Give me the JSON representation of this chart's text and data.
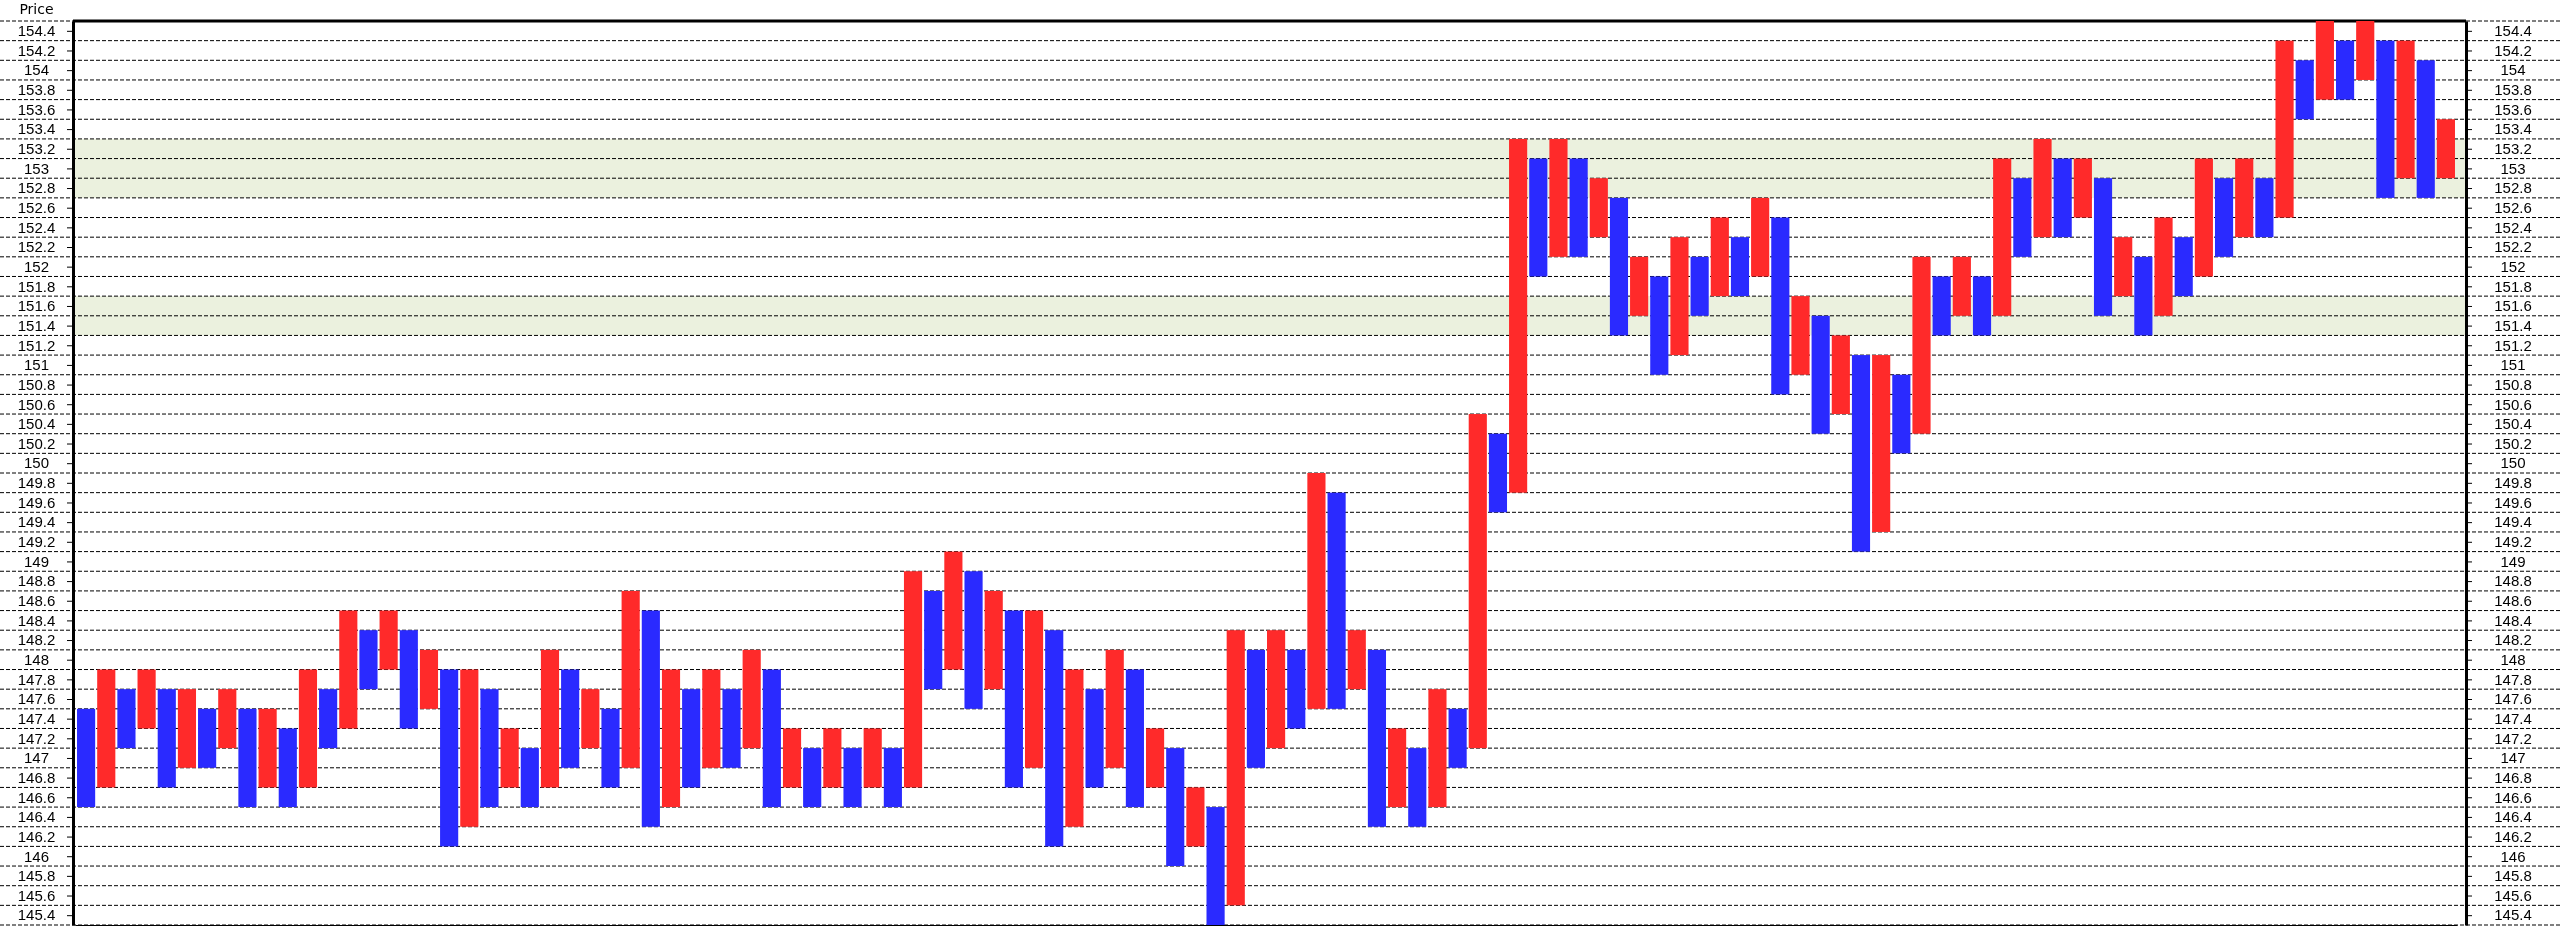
{
  "chart_data": {
    "type": "bar",
    "ylabel": "Price",
    "grid": "y",
    "categories": [
      null,
      null,
      null,
      null,
      null,
      null,
      null,
      null,
      null,
      null,
      null,
      null,
      null,
      null,
      null,
      null,
      null,
      null,
      null,
      null,
      null,
      null,
      null,
      null,
      null,
      null,
      null,
      null,
      null,
      null,
      null,
      null,
      null,
      null,
      null,
      null,
      null,
      null,
      null,
      null,
      null,
      null,
      null,
      null,
      null,
      null,
      null,
      null,
      null,
      null,
      null,
      null,
      null,
      null,
      null,
      null,
      null,
      null,
      null,
      null,
      null,
      null,
      null,
      null,
      null,
      null,
      null,
      null,
      null,
      null,
      null,
      null,
      null,
      null,
      null,
      null,
      null,
      null,
      null,
      null,
      null,
      null,
      null,
      null,
      null,
      null,
      null,
      null,
      null,
      null,
      null,
      null,
      null,
      null,
      null,
      null,
      null,
      null,
      null,
      null,
      null,
      null,
      null,
      null,
      null,
      null,
      null,
      null,
      null,
      null,
      null,
      null,
      null,
      null,
      null,
      null,
      null,
      null
    ],
    "base": [
      146.5,
      146.7,
      147.1,
      147.3,
      146.7,
      146.9,
      146.9,
      147.1,
      146.5,
      146.7,
      146.5,
      146.7,
      147.1,
      147.3,
      147.7,
      147.9,
      147.3,
      147.5,
      146.1,
      146.3,
      146.5,
      146.7,
      146.5,
      146.7,
      146.9,
      147.1,
      146.7,
      146.9,
      146.3,
      146.5,
      146.7,
      146.9,
      146.9,
      147.1,
      146.5,
      146.7,
      146.5,
      146.7,
      146.5,
      146.7,
      146.5,
      146.7,
      147.7,
      147.9,
      147.5,
      147.7,
      146.7,
      146.9,
      146.1,
      146.3,
      146.7,
      146.9,
      146.5,
      146.7,
      145.9,
      146.1,
      145.3,
      145.5,
      146.9,
      147.1,
      147.3,
      147.5,
      147.5,
      147.7,
      146.3,
      146.5,
      146.3,
      146.5,
      146.9,
      147.1,
      149.5,
      149.7,
      151.9,
      152.1,
      152.1,
      152.3,
      151.3,
      151.5,
      150.9,
      151.1,
      151.5,
      151.7,
      151.7,
      151.9,
      150.7,
      150.9,
      150.3,
      150.5,
      149.1,
      149.3,
      150.1,
      150.3,
      151.3,
      151.5,
      151.3,
      151.5,
      152.1,
      152.3,
      152.3,
      152.5,
      151.5,
      151.7,
      151.3,
      151.5,
      151.7,
      151.9,
      152.1,
      152.3,
      152.3,
      152.5,
      153.5,
      153.7,
      153.7,
      153.9,
      152.7,
      152.9,
      152.7,
      152.9
    ],
    "values": [
      1.0,
      1.2,
      0.6,
      0.6,
      1.0,
      0.8,
      0.6,
      0.6,
      1.0,
      0.8,
      0.8,
      1.2,
      0.6,
      1.2,
      0.6,
      0.6,
      1.0,
      0.6,
      1.8,
      1.6,
      1.2,
      0.6,
      0.6,
      1.4,
      1.0,
      0.6,
      0.8,
      1.8,
      2.2,
      1.4,
      1.0,
      1.0,
      0.8,
      1.0,
      1.4,
      0.6,
      0.6,
      0.6,
      0.6,
      0.6,
      0.6,
      2.2,
      1.0,
      1.2,
      1.4,
      1.0,
      1.8,
      1.6,
      2.2,
      1.6,
      1.0,
      1.2,
      1.4,
      0.6,
      1.2,
      0.6,
      1.2,
      2.8,
      1.2,
      1.2,
      0.8,
      2.4,
      2.2,
      0.6,
      1.8,
      0.8,
      0.8,
      1.2,
      0.6,
      3.4,
      0.8,
      3.6,
      1.2,
      1.2,
      1.0,
      0.6,
      1.4,
      0.6,
      1.0,
      1.2,
      0.6,
      0.8,
      0.6,
      0.8,
      1.8,
      0.8,
      1.2,
      0.8,
      2.0,
      1.8,
      0.8,
      1.8,
      0.6,
      0.6,
      0.6,
      1.6,
      0.8,
      1.0,
      0.8,
      0.6,
      1.4,
      0.6,
      0.8,
      1.0,
      0.6,
      1.2,
      0.8,
      0.8,
      0.6,
      1.8,
      0.6,
      0.8,
      0.6,
      0.6,
      1.6,
      1.4,
      1.4,
      0.6
    ],
    "colors": [
      "#2a2aff",
      "#ff2a2a",
      "#2a2aff",
      "#ff2a2a",
      "#2a2aff",
      "#ff2a2a",
      "#2a2aff",
      "#ff2a2a",
      "#2a2aff",
      "#ff2a2a",
      "#2a2aff",
      "#ff2a2a",
      "#2a2aff",
      "#ff2a2a",
      "#2a2aff",
      "#ff2a2a",
      "#2a2aff",
      "#ff2a2a",
      "#2a2aff",
      "#ff2a2a",
      "#2a2aff",
      "#ff2a2a",
      "#2a2aff",
      "#ff2a2a",
      "#2a2aff",
      "#ff2a2a",
      "#2a2aff",
      "#ff2a2a",
      "#2a2aff",
      "#ff2a2a",
      "#2a2aff",
      "#ff2a2a",
      "#2a2aff",
      "#ff2a2a",
      "#2a2aff",
      "#ff2a2a",
      "#2a2aff",
      "#ff2a2a",
      "#2a2aff",
      "#ff2a2a",
      "#2a2aff",
      "#ff2a2a",
      "#2a2aff",
      "#ff2a2a",
      "#2a2aff",
      "#ff2a2a",
      "#2a2aff",
      "#ff2a2a",
      "#2a2aff",
      "#ff2a2a",
      "#2a2aff",
      "#ff2a2a",
      "#2a2aff",
      "#ff2a2a",
      "#2a2aff",
      "#ff2a2a",
      "#2a2aff",
      "#ff2a2a",
      "#2a2aff",
      "#ff2a2a",
      "#2a2aff",
      "#ff2a2a",
      "#2a2aff",
      "#ff2a2a",
      "#2a2aff",
      "#ff2a2a",
      "#2a2aff",
      "#ff2a2a",
      "#2a2aff",
      "#ff2a2a",
      "#2a2aff",
      "#ff2a2a",
      "#2a2aff",
      "#ff2a2a",
      "#2a2aff",
      "#ff2a2a",
      "#2a2aff",
      "#ff2a2a",
      "#2a2aff",
      "#ff2a2a",
      "#2a2aff",
      "#ff2a2a",
      "#2a2aff",
      "#ff2a2a",
      "#2a2aff",
      "#ff2a2a",
      "#2a2aff",
      "#ff2a2a",
      "#2a2aff",
      "#ff2a2a",
      "#2a2aff",
      "#ff2a2a",
      "#2a2aff",
      "#ff2a2a",
      "#2a2aff",
      "#ff2a2a",
      "#2a2aff",
      "#ff2a2a",
      "#2a2aff",
      "#ff2a2a",
      "#2a2aff",
      "#ff2a2a",
      "#2a2aff",
      "#ff2a2a",
      "#2a2aff",
      "#ff2a2a",
      "#2a2aff",
      "#ff2a2a",
      "#2a2aff",
      "#ff2a2a",
      "#2a2aff",
      "#ff2a2a",
      "#2a2aff",
      "#ff2a2a",
      "#2a2aff",
      "#ff2a2a",
      "#2a2aff",
      "#ff2a2a"
    ],
    "bands": [
      {
        "axis": "y",
        "from": 152.7,
        "to": 153.3,
        "color": "#ebf1de"
      },
      {
        "axis": "y",
        "from": 151.3,
        "to": 151.7,
        "color": "#ebf1de"
      }
    ],
    "ylim": [
      145.3,
      154.5
    ],
    "yticks": [
      145.4,
      145.6,
      145.8,
      146,
      146.2,
      146.4,
      146.6,
      146.8,
      147,
      147.2,
      147.4,
      147.6,
      147.8,
      148,
      148.2,
      148.4,
      148.6,
      148.8,
      149,
      149.2,
      149.4,
      149.6,
      149.8,
      150,
      150.2,
      150.4,
      150.6,
      150.8,
      151,
      151.2,
      151.4,
      151.6,
      151.8,
      152,
      152.2,
      152.4,
      152.6,
      152.8,
      153,
      153.2,
      153.4,
      153.6,
      153.8,
      154,
      154.2,
      154.4
    ],
    "y2lim": [
      145.3,
      154.5
    ],
    "y2ticks": [
      145.4,
      145.6,
      145.8,
      146,
      146.2,
      146.4,
      146.6,
      146.8,
      147,
      147.2,
      147.4,
      147.6,
      147.8,
      148,
      148.2,
      148.4,
      148.6,
      148.8,
      149,
      149.2,
      149.4,
      149.6,
      149.8,
      150,
      150.2,
      150.4,
      150.6,
      150.8,
      151,
      151.2,
      151.4,
      151.6,
      151.8,
      152,
      152.2,
      152.4,
      152.6,
      152.8,
      153,
      153.2,
      153.4,
      153.6,
      153.8,
      154,
      154.2,
      154.4
    ]
  }
}
